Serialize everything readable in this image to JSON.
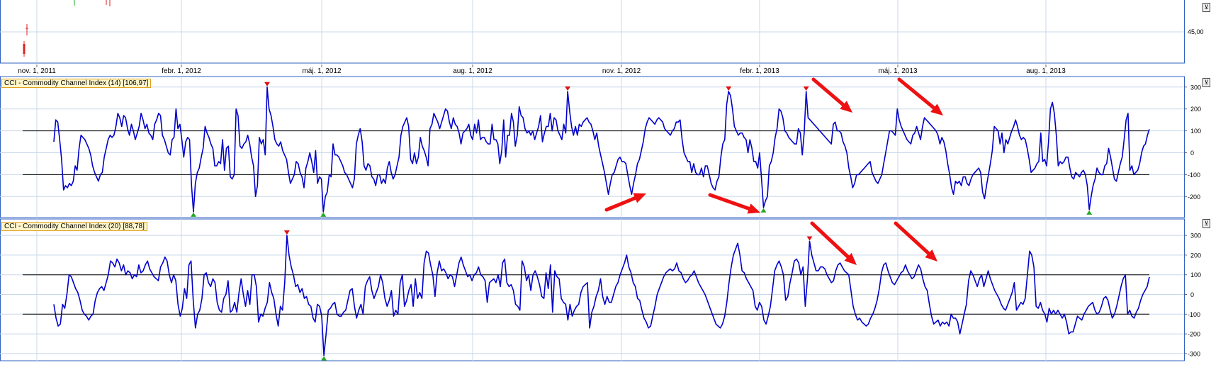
{
  "colors": {
    "line": "#0000cc",
    "panel_border": "#3060c0",
    "arrow": "#ee1111",
    "grid": "#c8d8ea",
    "peak_marker": "#dd1111",
    "trough_marker": "#22aa22"
  },
  "top_panel": {
    "price_label": "45,00",
    "date_labels": [
      "nov. 1, 2011",
      "febr. 1, 2012",
      "máj. 1, 2012",
      "aug. 1, 2012",
      "nov. 1, 2012",
      "febr. 1, 2013",
      "máj. 1, 2013",
      "aug. 1, 2013"
    ]
  },
  "collapse_glyph": "⊻",
  "chart_data": [
    {
      "type": "line",
      "title": "CCI - Commodity Channel Index (14) [106,97]",
      "y_ticks": [
        "300",
        "200",
        "100",
        "0",
        "-100",
        "-200"
      ],
      "reference_lines": [
        100,
        -100
      ],
      "series": [
        {
          "values": [
            50,
            150,
            140,
            60,
            -30,
            -170,
            -150,
            -160,
            -140,
            -150,
            -130,
            -60,
            -80,
            20,
            80,
            70,
            60,
            40,
            20,
            -10,
            -60,
            -90,
            -110,
            -130,
            -100,
            -90,
            -20,
            20,
            60,
            80,
            70,
            80,
            120,
            180,
            160,
            120,
            170,
            160,
            110,
            80,
            130,
            100,
            60,
            90,
            120,
            180,
            150,
            110,
            130,
            90,
            80,
            60,
            130,
            150,
            180,
            170,
            80,
            60,
            30,
            0,
            -10,
            60,
            70,
            200,
            110,
            130,
            60,
            -20,
            50,
            70,
            60,
            -150,
            -270,
            -140,
            -90,
            -70,
            -20,
            20,
            120,
            90,
            70,
            40,
            20,
            -60,
            -60,
            -40,
            -50,
            60,
            -80,
            20,
            30,
            -110,
            -120,
            -100,
            200,
            170,
            30,
            20,
            40,
            50,
            80,
            40,
            -20,
            -60,
            -200,
            -150,
            70,
            40,
            60,
            -10,
            300,
            200,
            170,
            120,
            60,
            40,
            30,
            50,
            10,
            -10,
            -30,
            -90,
            -140,
            -120,
            -100,
            -40,
            -50,
            -90,
            -110,
            -160,
            -70,
            -40,
            0,
            -40,
            -90,
            10,
            -140,
            -110,
            -120,
            -270,
            -200,
            -180,
            -100,
            -110,
            40,
            -10,
            -10,
            -20,
            -40,
            -60,
            -90,
            -100,
            -120,
            -140,
            -160,
            -120,
            40,
            80,
            110,
            50,
            -60,
            -80,
            -50,
            -60,
            -110,
            -120,
            -150,
            -100,
            -100,
            -140,
            -120,
            -140,
            -70,
            -40,
            -90,
            -120,
            -100,
            -60,
            -20,
            80,
            120,
            140,
            160,
            120,
            -30,
            -50,
            0,
            -50,
            -20,
            70,
            30,
            10,
            -20,
            -60,
            110,
            130,
            180,
            160,
            140,
            110,
            140,
            170,
            200,
            190,
            140,
            110,
            160,
            130,
            120,
            90,
            40,
            90,
            100,
            110,
            130,
            80,
            60,
            130,
            90,
            150,
            60,
            70,
            70,
            50,
            40,
            40,
            130,
            60,
            60,
            40,
            -50,
            10,
            150,
            -20,
            80,
            80,
            180,
            140,
            30,
            80,
            210,
            170,
            160,
            110,
            90,
            100,
            80,
            100,
            60,
            90,
            120,
            170,
            50,
            90,
            120,
            120,
            180,
            100,
            160,
            150,
            100,
            80,
            60,
            130,
            90,
            280,
            190,
            120,
            80,
            120,
            80,
            130,
            120,
            140,
            150,
            160,
            140,
            130,
            100,
            60,
            90,
            30,
            -10,
            -50,
            -90,
            -140,
            -190,
            -140,
            -100,
            -90,
            -60,
            -30,
            -20,
            -40,
            -40,
            -50,
            -100,
            -150,
            -190,
            -140,
            -100,
            -50,
            -30,
            10,
            50,
            110,
            140,
            160,
            150,
            140,
            130,
            150,
            160,
            150,
            140,
            110,
            100,
            90,
            80,
            100,
            110,
            140,
            140,
            150,
            60,
            0,
            -20,
            -40,
            -40,
            -90,
            -50,
            -90,
            -100,
            -100,
            -70,
            -110,
            -60,
            -60,
            -100,
            -140,
            -160,
            -170,
            -130,
            -110,
            -20,
            40,
            60,
            220,
            280,
            260,
            200,
            120,
            100,
            80,
            90,
            90,
            70,
            60,
            0,
            60,
            20,
            -40,
            -40,
            -70,
            0,
            -120,
            -250,
            -220,
            -200,
            -60,
            -40,
            0,
            70,
            110,
            200,
            190,
            160,
            100,
            90,
            70,
            60,
            50,
            40,
            40,
            110,
            90,
            -10,
            90,
            280,
            160,
            150,
            140,
            130,
            120,
            110,
            100,
            90,
            80,
            70,
            60,
            50,
            40,
            130,
            140,
            100,
            100,
            90,
            50,
            30,
            0,
            -70,
            -110,
            -160,
            -140,
            -100,
            -100,
            -90,
            -80,
            -70,
            -60,
            -50,
            -40,
            -90,
            -110,
            -130,
            -140,
            -120,
            -100,
            -50,
            0,
            50,
            100,
            100,
            90,
            80,
            200,
            150,
            120,
            100,
            80,
            60,
            50,
            40,
            80,
            90,
            120,
            90,
            60,
            120,
            160,
            150,
            140,
            130,
            120,
            110,
            100,
            80,
            40,
            70,
            50,
            10,
            -50,
            -100,
            -160,
            -190,
            -130,
            -140,
            -130,
            -150,
            -110,
            -110,
            -140,
            -150,
            -120,
            -100,
            -90,
            -80,
            -70,
            -90,
            -180,
            -210,
            -150,
            -100,
            -50,
            10,
            120,
            110,
            100,
            40,
            90,
            0,
            60,
            40,
            70,
            100,
            120,
            150,
            120,
            80,
            60,
            70,
            60,
            20,
            -30,
            -90,
            -80,
            -70,
            -50,
            -40,
            90,
            -40,
            -30,
            -60,
            50,
            200,
            230,
            180,
            80,
            -60,
            -40,
            -50,
            -40,
            -20,
            -20,
            -70,
            -110,
            -120,
            -90,
            -100,
            -110,
            -90,
            -80,
            -100,
            -150,
            -260,
            -200,
            -150,
            -120,
            -70,
            -90,
            -100,
            -100,
            -60,
            -50,
            20,
            -20,
            -70,
            -120,
            -130,
            -90,
            -50,
            -20,
            60,
            150,
            180,
            -80,
            -60,
            -100,
            -90,
            -80,
            -50,
            0,
            30,
            40,
            80,
            107
          ]
        }
      ]
    },
    {
      "type": "line",
      "title": "CCI - Commodity Channel Index (20) [88,78]",
      "y_ticks": [
        "300",
        "200",
        "100",
        "0",
        "-100",
        "-200",
        "-300"
      ],
      "reference_lines": [
        100,
        -100
      ],
      "series": [
        {
          "values": [
            -50,
            -120,
            -160,
            -150,
            -50,
            -70,
            0,
            100,
            90,
            60,
            30,
            10,
            -30,
            -80,
            -100,
            -110,
            -130,
            -110,
            -100,
            -30,
            10,
            30,
            40,
            20,
            60,
            100,
            170,
            160,
            140,
            180,
            160,
            120,
            150,
            100,
            120,
            110,
            80,
            100,
            90,
            150,
            110,
            120,
            150,
            170,
            130,
            110,
            90,
            80,
            70,
            140,
            160,
            190,
            170,
            100,
            60,
            100,
            70,
            -50,
            -110,
            -70,
            30,
            -20,
            150,
            170,
            -30,
            -170,
            -100,
            -80,
            -20,
            100,
            110,
            60,
            40,
            80,
            60,
            -40,
            -80,
            -90,
            -20,
            0,
            70,
            -90,
            -80,
            -40,
            -90,
            10,
            80,
            0,
            -60,
            20,
            -50,
            100,
            100,
            40,
            -140,
            -100,
            -110,
            -70,
            -40,
            60,
            10,
            -20,
            -100,
            -160,
            -60,
            -80,
            60,
            300,
            200,
            140,
            100,
            40,
            50,
            10,
            30,
            -20,
            -10,
            -50,
            -60,
            -120,
            -140,
            -50,
            -60,
            -110,
            -310,
            -200,
            -80,
            -70,
            -50,
            -40,
            -100,
            -110,
            -110,
            -90,
            -80,
            -30,
            20,
            30,
            -60,
            -120,
            -80,
            -50,
            -100,
            40,
            70,
            90,
            20,
            -20,
            10,
            40,
            100,
            60,
            -20,
            -60,
            -30,
            20,
            -110,
            -80,
            -100,
            60,
            100,
            -60,
            -30,
            20,
            50,
            -60,
            80,
            -20,
            10,
            -20,
            160,
            220,
            210,
            150,
            100,
            -10,
            110,
            170,
            120,
            130,
            110,
            80,
            100,
            90,
            40,
            100,
            160,
            190,
            150,
            120,
            90,
            100,
            70,
            100,
            110,
            140,
            100,
            90,
            70,
            -40,
            60,
            70,
            80,
            60,
            100,
            40,
            160,
            180,
            60,
            40,
            50,
            20,
            -50,
            -60,
            -80,
            170,
            140,
            70,
            100,
            20,
            100,
            120,
            90,
            50,
            -10,
            -20,
            110,
            30,
            150,
            -90,
            120,
            90,
            80,
            -20,
            -40,
            -50,
            -130,
            -50,
            -110,
            -80,
            -60,
            -50,
            10,
            40,
            50,
            60,
            -170,
            -90,
            -60,
            -10,
            20,
            80,
            -10,
            -50,
            -10,
            -40,
            -40,
            0,
            40,
            60,
            100,
            130,
            160,
            200,
            140,
            110,
            60,
            40,
            -20,
            -30,
            -80,
            -120,
            -140,
            -170,
            -160,
            -110,
            -60,
            0,
            30,
            60,
            90,
            110,
            120,
            130,
            120,
            130,
            160,
            120,
            110,
            80,
            60,
            70,
            90,
            100,
            120,
            90,
            60,
            40,
            20,
            0,
            -30,
            -60,
            -90,
            -120,
            -150,
            -160,
            -170,
            -150,
            -110,
            -40,
            60,
            140,
            200,
            230,
            260,
            200,
            120,
            110,
            80,
            60,
            40,
            20,
            -60,
            -80,
            -40,
            -60,
            -130,
            -150,
            -110,
            -60,
            30,
            120,
            150,
            170,
            140,
            100,
            -30,
            -10,
            60,
            110,
            170,
            180,
            160,
            100,
            140,
            -60,
            80,
            270,
            200,
            160,
            120,
            120,
            140,
            140,
            130,
            100,
            80,
            60,
            70,
            120,
            150,
            160,
            140,
            120,
            110,
            100,
            20,
            -60,
            -100,
            -130,
            -120,
            -140,
            -150,
            -160,
            -150,
            -120,
            -100,
            -70,
            -30,
            30,
            110,
            150,
            160,
            120,
            90,
            60,
            50,
            70,
            90,
            110,
            120,
            150,
            120,
            100,
            80,
            90,
            120,
            150,
            130,
            80,
            40,
            20,
            -50,
            -110,
            -150,
            -140,
            -130,
            -160,
            -140,
            -150,
            -140,
            -160,
            -100,
            -120,
            -120,
            -140,
            -200,
            -150,
            -100,
            -50,
            70,
            120,
            100,
            70,
            40,
            80,
            100,
            40,
            80,
            120,
            80,
            50,
            20,
            0,
            -20,
            -50,
            -70,
            -80,
            -50,
            -20,
            10,
            60,
            -80,
            -60,
            -40,
            -50,
            -20,
            100,
            220,
            200,
            140,
            -60,
            -70,
            -40,
            -80,
            -100,
            -140,
            -70,
            -100,
            -80,
            -100,
            -80,
            -100,
            -120,
            -100,
            -140,
            -200,
            -190,
            -190,
            -150,
            -110,
            -120,
            -130,
            -100,
            -80,
            -60,
            -50,
            -40,
            -80,
            -100,
            -90,
            -60,
            -20,
            -10,
            -30,
            -80,
            -120,
            -100,
            -60,
            -10,
            40,
            80,
            100,
            -100,
            -80,
            -110,
            -120,
            -90,
            -70,
            -30,
            0,
            20,
            40,
            89
          ]
        }
      ]
    }
  ]
}
